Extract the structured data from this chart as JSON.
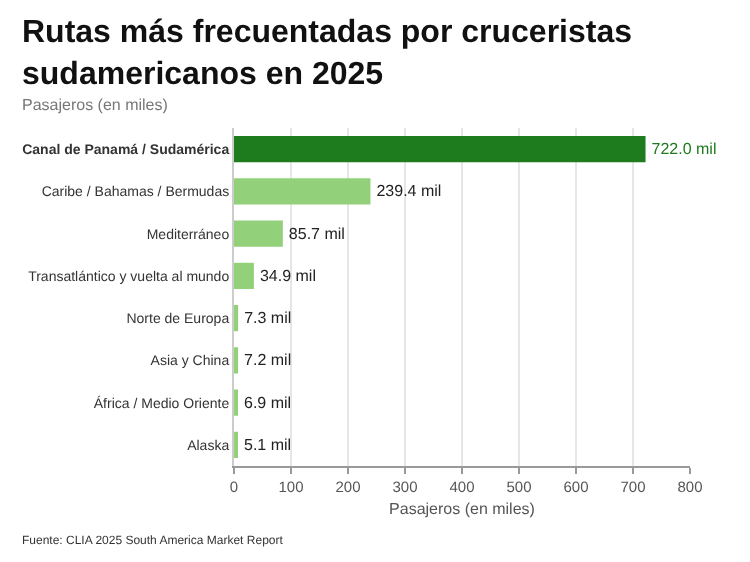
{
  "chart_data": {
    "type": "bar",
    "orientation": "horizontal",
    "title": "Rutas más frecuentadas por cruceristas sudamericanos en 2025",
    "subtitle": "Pasajeros (en miles)",
    "xlabel": "Pasajeros (en miles)",
    "categories": [
      "Canal de Panamá / Sudamérica",
      "Caribe / Bahamas / Bermudas",
      "Mediterráneo",
      "Transatlántico y vuelta al mundo",
      "Norte de Europa",
      "Asia y China",
      "África / Medio Oriente",
      "Alaska"
    ],
    "values": [
      722.0,
      239.4,
      85.7,
      34.9,
      7.3,
      7.2,
      6.9,
      5.1
    ],
    "colors": [
      "#1e7b1e",
      "#93d07a",
      "#93d07a",
      "#93d07a",
      "#93d07a",
      "#93d07a",
      "#93d07a",
      "#93d07a"
    ],
    "value_labels": [
      "722.0 mil",
      "239.4 mil",
      "85.7 mil",
      "34.9 mil",
      "7.3 mil",
      "7.2 mil",
      "6.9 mil",
      "5.1 mil"
    ],
    "xlim": [
      0,
      800
    ],
    "xticks": [
      0,
      100,
      200,
      300,
      400,
      500,
      600,
      700,
      800
    ],
    "grid": "x",
    "annotations": [
      "Fuente: CLIA 2025 South America Market Report"
    ]
  }
}
